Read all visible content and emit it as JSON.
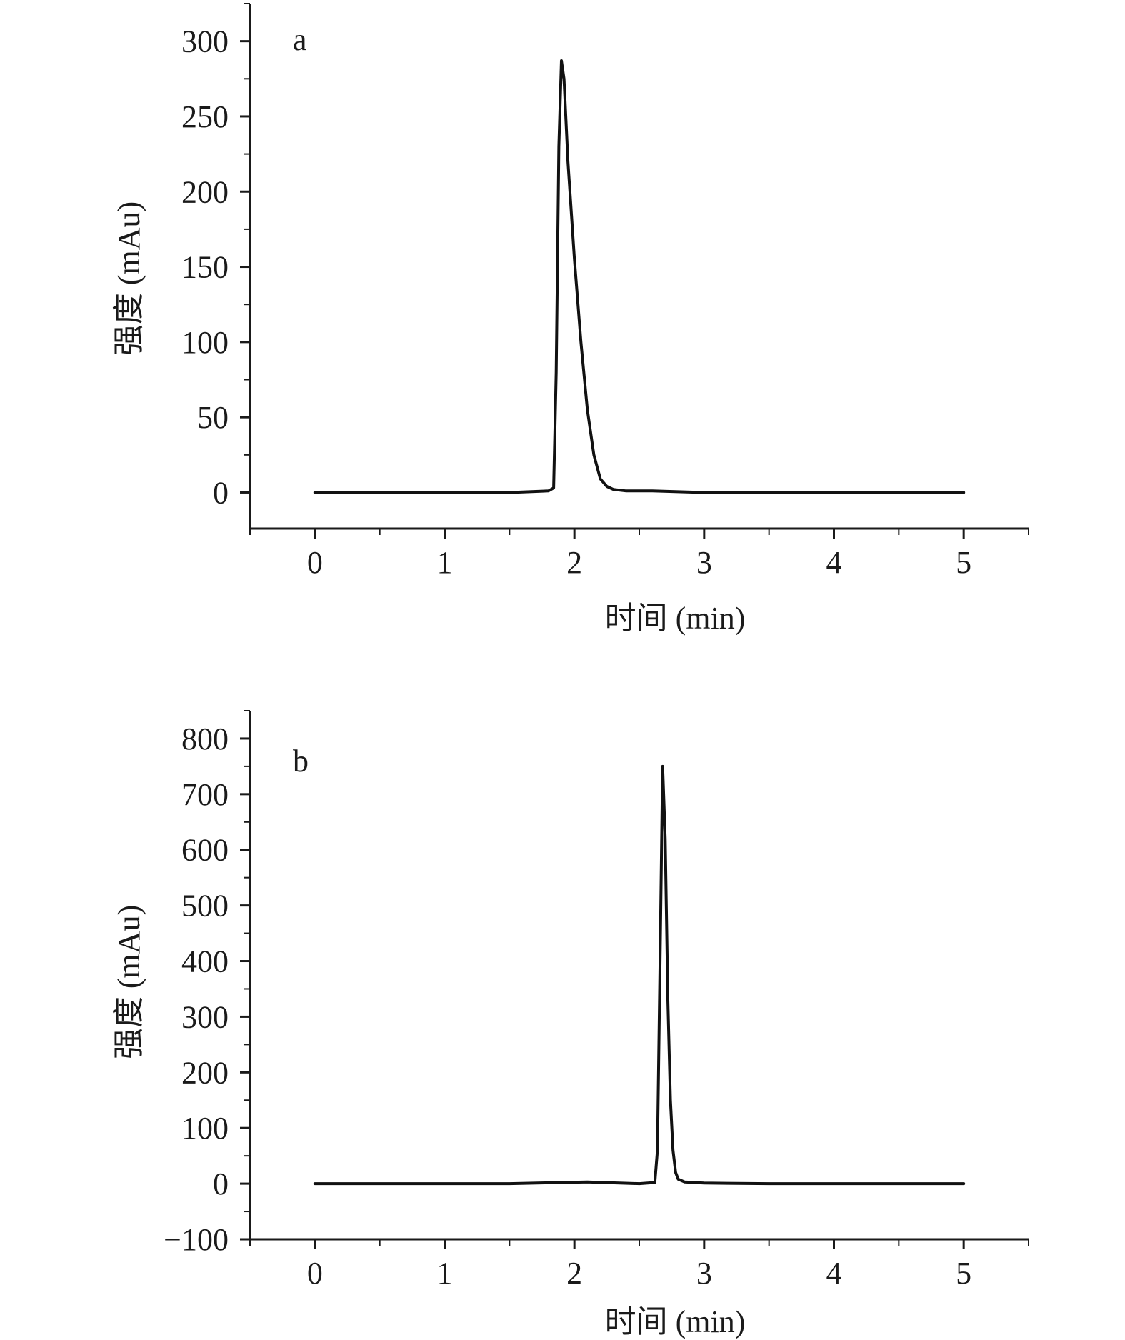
{
  "chart_data": [
    {
      "type": "line",
      "panel_label": "a",
      "xlabel": "时间 (min)",
      "ylabel": "强度 (mAu)",
      "xlim": [
        -0.5,
        5.5
      ],
      "ylim": [
        -24,
        325
      ],
      "x_ticks": [
        0,
        1,
        2,
        3,
        4,
        5
      ],
      "x_tick_labels": [
        "0",
        "1",
        "2",
        "3",
        "4",
        "5"
      ],
      "y_ticks": [
        0,
        50,
        100,
        150,
        200,
        250,
        300
      ],
      "y_tick_labels": [
        "0",
        "50",
        "100",
        "150",
        "200",
        "250",
        "300"
      ],
      "grid": false,
      "series": [
        {
          "x": [
            0,
            0.5,
            1.0,
            1.5,
            1.8,
            1.84,
            1.86,
            1.88,
            1.9,
            1.92,
            1.95,
            2.0,
            2.05,
            2.1,
            2.15,
            2.2,
            2.25,
            2.3,
            2.4,
            2.6,
            3.0,
            3.5,
            4.0,
            4.5,
            5.0
          ],
          "y": [
            0,
            0,
            0,
            0,
            1,
            3,
            80,
            230,
            287,
            275,
            220,
            155,
            100,
            55,
            25,
            9,
            4,
            2,
            1,
            1,
            0,
            0,
            0,
            0,
            0
          ]
        }
      ]
    },
    {
      "type": "line",
      "panel_label": "b",
      "xlabel": "时间 (min)",
      "ylabel": "强度 (mAu)",
      "xlim": [
        -0.5,
        5.5
      ],
      "ylim": [
        -100,
        850
      ],
      "x_ticks": [
        0,
        1,
        2,
        3,
        4,
        5
      ],
      "x_tick_labels": [
        "0",
        "1",
        "2",
        "3",
        "4",
        "5"
      ],
      "y_ticks": [
        -100,
        0,
        100,
        200,
        300,
        400,
        500,
        600,
        700,
        800
      ],
      "y_tick_labels": [
        "−100",
        "0",
        "100",
        "200",
        "300",
        "400",
        "500",
        "600",
        "700",
        "800"
      ],
      "grid": false,
      "series": [
        {
          "x": [
            0,
            0.5,
            1.0,
            1.5,
            1.9,
            2.1,
            2.5,
            2.62,
            2.64,
            2.66,
            2.68,
            2.7,
            2.72,
            2.74,
            2.76,
            2.78,
            2.8,
            2.85,
            3.0,
            3.5,
            4.0,
            4.5,
            5.0
          ],
          "y": [
            0,
            0,
            0,
            0,
            2,
            3,
            0,
            2,
            60,
            400,
            750,
            620,
            330,
            150,
            60,
            20,
            8,
            3,
            1,
            0,
            0,
            0,
            0
          ]
        }
      ]
    }
  ]
}
